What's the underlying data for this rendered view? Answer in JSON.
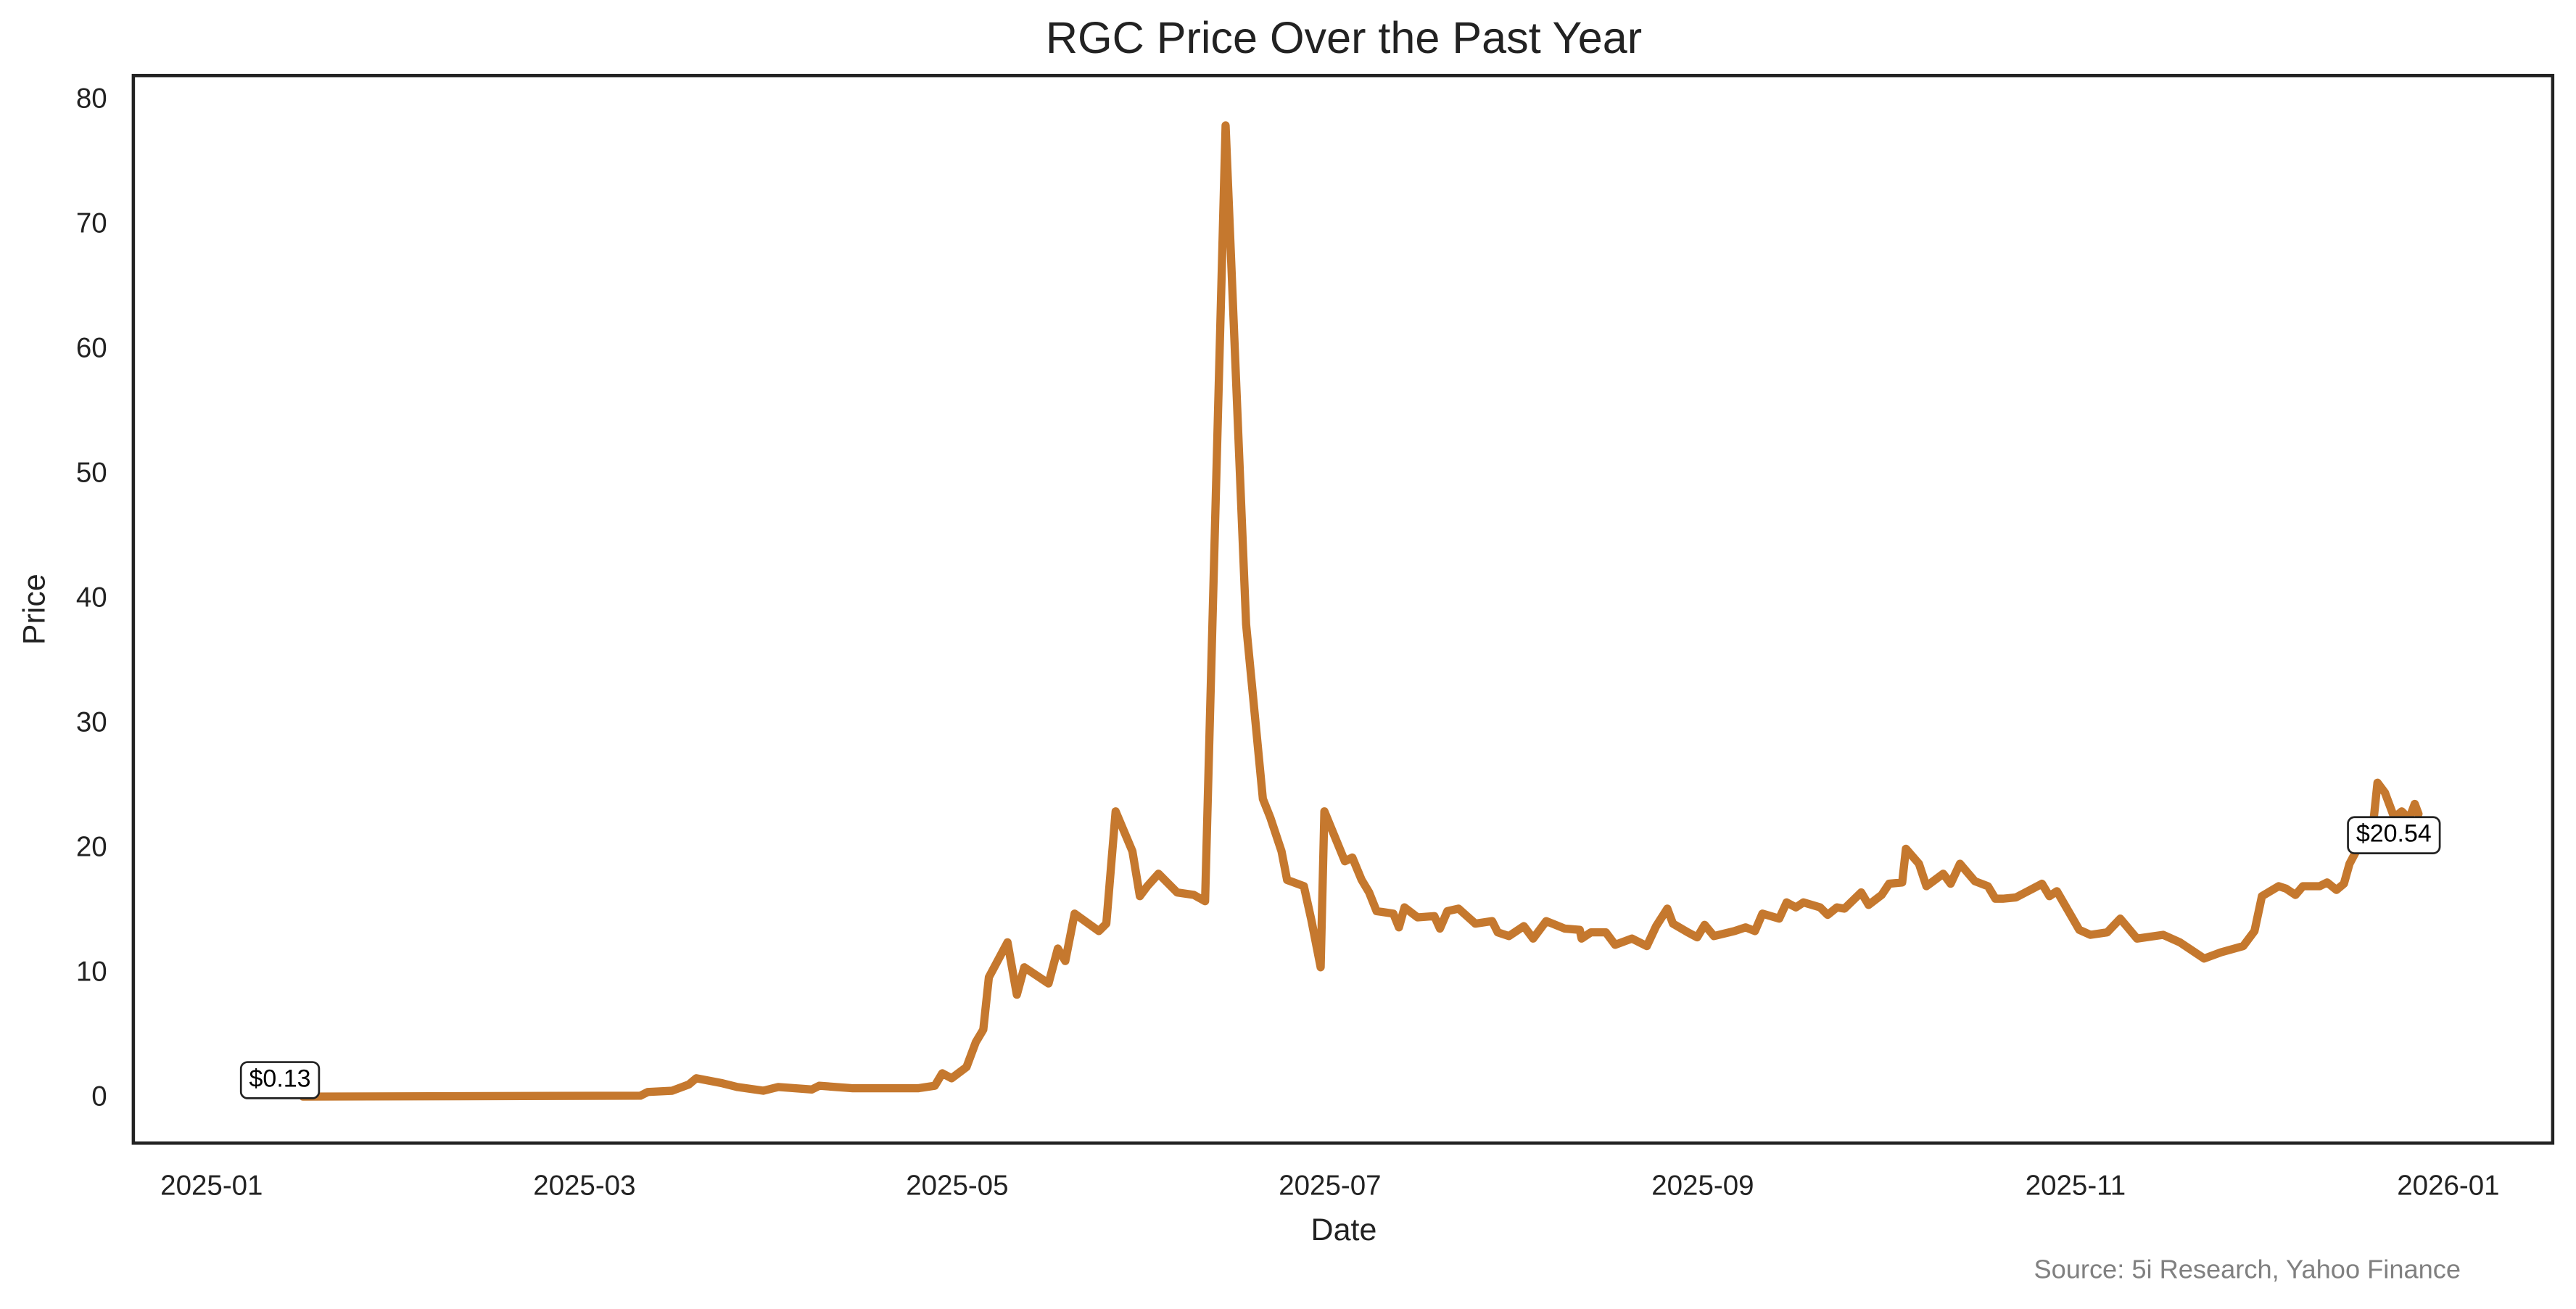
{
  "chart_data": {
    "type": "line",
    "title": "RGC Price Over the Past Year",
    "xlabel": "Date",
    "ylabel": "Price",
    "source": "Source: 5i Research, Yahoo Finance",
    "color": "#c5782e",
    "grid": false,
    "xlim": [
      0.58,
      13.56
    ],
    "xticks": [
      {
        "value": 1,
        "label": "2025-01"
      },
      {
        "value": 3,
        "label": "2025-03"
      },
      {
        "value": 5,
        "label": "2025-05"
      },
      {
        "value": 7,
        "label": "2025-07"
      },
      {
        "value": 9,
        "label": "2025-09"
      },
      {
        "value": 11,
        "label": "2025-11"
      },
      {
        "value": 13,
        "label": "2026-01"
      }
    ],
    "ylim": [
      -3.6,
      82
    ],
    "yticks": [
      0,
      10,
      20,
      30,
      40,
      50,
      60,
      70,
      80
    ],
    "x": [
      1.49,
      3.3,
      3.34,
      3.47,
      3.56,
      3.6,
      3.74,
      3.82,
      3.96,
      4.04,
      4.22,
      4.26,
      4.44,
      4.79,
      4.88,
      4.92,
      4.97,
      5.05,
      5.1,
      5.14,
      5.17,
      5.27,
      5.32,
      5.36,
      5.49,
      5.54,
      5.58,
      5.63,
      5.76,
      5.8,
      5.85,
      5.94,
      5.98,
      6.02,
      6.08,
      6.18,
      6.27,
      6.33,
      6.44,
      6.55,
      6.64,
      6.68,
      6.74,
      6.77,
      6.86,
      6.9,
      6.95,
      6.97,
      7.08,
      7.12,
      7.17,
      7.21,
      7.25,
      7.34,
      7.37,
      7.4,
      7.47,
      7.56,
      7.59,
      7.63,
      7.69,
      7.78,
      7.87,
      7.9,
      7.96,
      8.04,
      8.09,
      8.16,
      8.26,
      8.34,
      8.35,
      8.4,
      8.48,
      8.53,
      8.62,
      8.7,
      8.75,
      8.81,
      8.84,
      8.92,
      8.97,
      9.01,
      9.06,
      9.17,
      9.23,
      9.28,
      9.32,
      9.41,
      9.45,
      9.5,
      9.54,
      9.63,
      9.67,
      9.72,
      9.76,
      9.85,
      9.89,
      9.96,
      10.0,
      10.07,
      10.09,
      10.16,
      10.2,
      10.29,
      10.33,
      10.38,
      10.46,
      10.53,
      10.57,
      10.61,
      10.68,
      10.77,
      10.82,
      10.86,
      10.9,
      11.02,
      11.08,
      11.17,
      11.24,
      11.33,
      11.47,
      11.56,
      11.69,
      11.78,
      11.9,
      11.96,
      12.0,
      12.09,
      12.13,
      12.18,
      12.22,
      12.31,
      12.35,
      12.4,
      12.44,
      12.47,
      12.53,
      12.59,
      12.62,
      12.66,
      12.71,
      12.75,
      12.79,
      12.82,
      12.84
    ],
    "values": [
      0.13,
      0.2,
      0.5,
      0.6,
      1.1,
      1.6,
      1.2,
      0.9,
      0.6,
      0.9,
      0.7,
      1.0,
      0.8,
      0.8,
      1.0,
      2.0,
      1.6,
      2.5,
      4.5,
      5.5,
      9.7,
      12.5,
      8.3,
      10.5,
      9.2,
      12,
      11,
      14.8,
      13.4,
      14,
      23,
      19.8,
      16.2,
      17,
      18,
      16.5,
      16.3,
      15.8,
      78,
      38,
      24,
      22.5,
      19.8,
      17.5,
      17,
      14.3,
      10.5,
      23,
      19,
      19.3,
      17.5,
      16.5,
      15,
      14.8,
      13.7,
      15.3,
      14.5,
      14.6,
      13.6,
      15.0,
      15.2,
      14.0,
      14.2,
      13.3,
      13,
      13.8,
      12.8,
      14.2,
      13.6,
      13.5,
      12.8,
      13.3,
      13.3,
      12.3,
      12.8,
      12.2,
      13.8,
      15.2,
      14,
      13.3,
      12.9,
      13.9,
      13,
      13.4,
      13.7,
      13.4,
      14.8,
      14.4,
      15.7,
      15.3,
      15.7,
      15.3,
      14.7,
      15.3,
      15.2,
      16.5,
      15.5,
      16.3,
      17.2,
      17.3,
      20,
      18.8,
      17,
      18,
      17.2,
      18.8,
      17.4,
      17.0,
      16,
      16,
      16.1,
      16.8,
      17.2,
      16.2,
      16.6,
      13.5,
      13.1,
      13.3,
      14.4,
      12.8,
      13.1,
      12.5,
      11.2,
      11.7,
      12.2,
      13.4,
      16.2,
      17,
      16.8,
      16.3,
      17,
      17,
      17.3,
      16.7,
      17.2,
      18.8,
      20.5,
      21,
      25.3,
      24.5,
      22.5,
      23.0,
      22.4,
      23.6,
      22.8
    ],
    "annotations": [
      {
        "text": "$0.13"
      },
      {
        "text": "$20.54"
      }
    ]
  }
}
